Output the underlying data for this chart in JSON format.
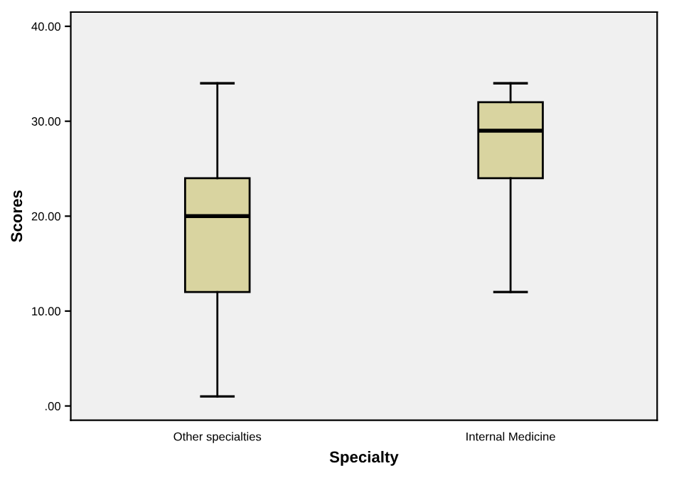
{
  "chart_data": {
    "type": "box",
    "xlabel": "Specialty",
    "ylabel": "Scores",
    "categories": [
      "Other specialties",
      "Internal Medicine"
    ],
    "boxes": [
      {
        "low": 1,
        "q1": 12,
        "median": 20,
        "q3": 24,
        "high": 34
      },
      {
        "low": 12,
        "q1": 24,
        "median": 29,
        "q3": 32,
        "high": 34
      }
    ],
    "color": "#d9d4a0",
    "ylim": [
      -1.5,
      41.5
    ],
    "yticks": [
      {
        "value": 0,
        "label": ".00"
      },
      {
        "value": 10,
        "label": "10.00"
      },
      {
        "value": 20,
        "label": "20.00"
      },
      {
        "value": 30,
        "label": "30.00"
      },
      {
        "value": 40,
        "label": "40.00"
      }
    ],
    "grid": false
  }
}
